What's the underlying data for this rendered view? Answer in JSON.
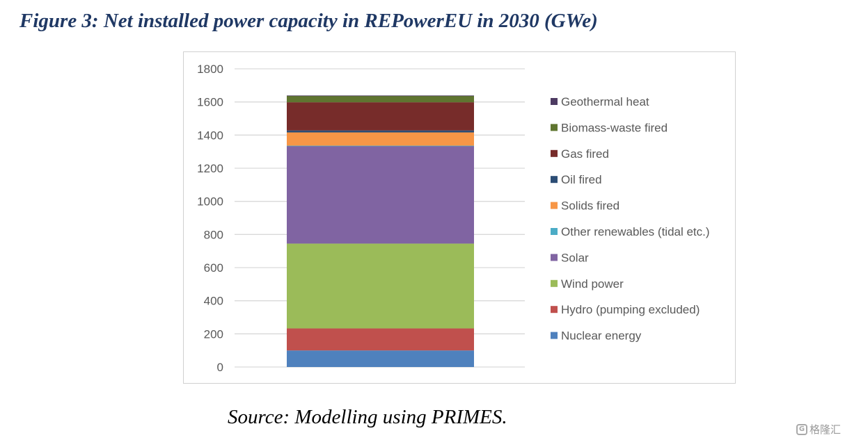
{
  "figure_title": "Figure 3: Net installed power capacity in REPowerEU in 2030 (GWe)",
  "source_note": "Source: Modelling using PRIMES.",
  "watermark": {
    "icon": "gelonghui-logo-icon",
    "text": "格隆汇"
  },
  "chart_data": {
    "type": "bar",
    "stacked": true,
    "categories": [
      ""
    ],
    "y_ticks": [
      "0",
      "200",
      "400",
      "600",
      "800",
      "1000",
      "1200",
      "1400",
      "1600",
      "1800"
    ],
    "ylim": [
      0,
      1800
    ],
    "grid": true,
    "legend_position": "right",
    "legend_order": "reverse",
    "series": [
      {
        "name": "Nuclear energy",
        "values": [
          100
        ],
        "color": "#4f81bd"
      },
      {
        "name": "Hydro (pumping excluded)",
        "values": [
          133
        ],
        "color": "#c0504d"
      },
      {
        "name": "Wind power",
        "values": [
          512
        ],
        "color": "#9bbb59"
      },
      {
        "name": "Solar",
        "values": [
          590
        ],
        "color": "#8064a2"
      },
      {
        "name": "Other renewables (tidal etc.)",
        "values": [
          1
        ],
        "color": "#4bacc6"
      },
      {
        "name": "Solids fired",
        "values": [
          80
        ],
        "color": "#f79646"
      },
      {
        "name": "Oil fired",
        "values": [
          12
        ],
        "color": "#2c4d75"
      },
      {
        "name": "Gas fired",
        "values": [
          170
        ],
        "color": "#772c2a"
      },
      {
        "name": "Biomass-waste fired",
        "values": [
          39
        ],
        "color": "#5f7530"
      },
      {
        "name": "Geothermal heat",
        "values": [
          2
        ],
        "color": "#4d3b62"
      }
    ]
  }
}
